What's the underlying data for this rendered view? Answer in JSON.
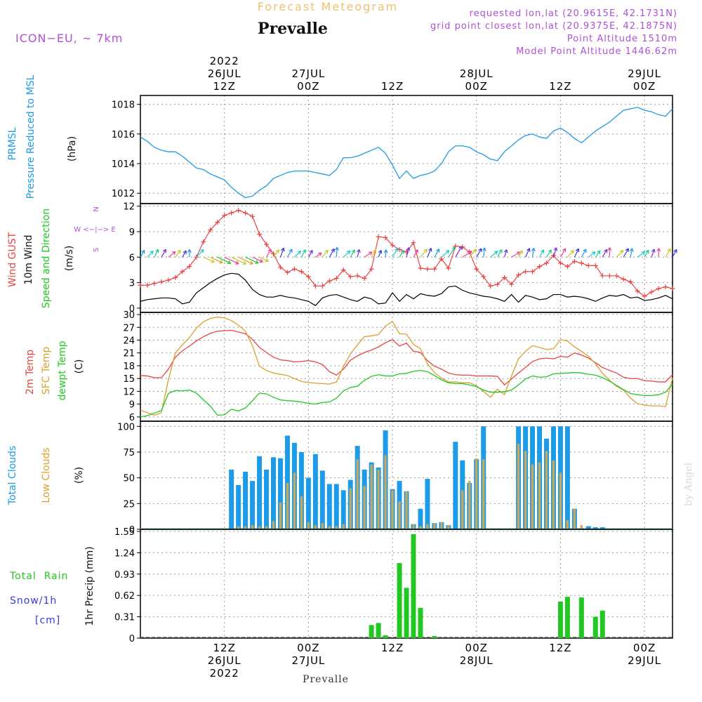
{
  "header": {
    "title": "Forecast Meteogram",
    "location": "Prevalle",
    "model": "ICON−EU,  ~ 7km",
    "info": [
      "requested lon,lat (20.9615E, 42.1731N)",
      "grid point closest lon,lat (20.9375E, 42.1875N)",
      "Point Altitude 1510m",
      "Model Point Altitude 1446.62m"
    ],
    "footer_location": "Prevalle",
    "credit": "by Angel"
  },
  "colors": {
    "pressure": "#1f9ae6",
    "gust": "#e84545",
    "wind": "#000000",
    "t2m": "#e84545",
    "sfc": "#d9a030",
    "dewpt": "#22c822",
    "total_clouds": "#1b9be8",
    "low_clouds": "#c8a85a",
    "rain": "#22c822",
    "snow": "#3a3ad8",
    "info": "#b050d8",
    "title": "#f0c070"
  },
  "time_axis": {
    "top_ticks": [
      {
        "h": 12,
        "lines": [
          "2022",
          "26JUL",
          "12Z"
        ]
      },
      {
        "h": 24,
        "lines": [
          "27JUL",
          "00Z"
        ]
      },
      {
        "h": 36,
        "lines": [
          "12Z"
        ]
      },
      {
        "h": 48,
        "lines": [
          "28JUL",
          "00Z"
        ]
      },
      {
        "h": 60,
        "lines": [
          "12Z"
        ]
      },
      {
        "h": 72,
        "lines": [
          "29JUL",
          "00Z"
        ]
      }
    ],
    "bottom_ticks": [
      {
        "h": 12,
        "lines": [
          "12Z",
          "26JUL",
          "2022"
        ]
      },
      {
        "h": 24,
        "lines": [
          "00Z",
          "27JUL"
        ]
      },
      {
        "h": 36,
        "lines": [
          "12Z"
        ]
      },
      {
        "h": 48,
        "lines": [
          "00Z",
          "28JUL"
        ]
      },
      {
        "h": 60,
        "lines": [
          "12Z"
        ]
      },
      {
        "h": 72,
        "lines": [
          "00Z",
          "29JUL"
        ]
      }
    ]
  },
  "panel_labels": {
    "pressure": {
      "lines": [
        "PRMSL",
        "Pressure Reduced to MSL"
      ],
      "unit": "(hPa)"
    },
    "wind": {
      "gust": "Wind GUST",
      "wind10": "10m Wind",
      "dir": "Speed and Direction",
      "unit": "(m/s)",
      "compass_n": "N",
      "compass_s": "S",
      "compass_we": "W  <−|−>  E"
    },
    "temp": {
      "t2m": "2m Temp",
      "sfc": "SFC Temp",
      "dew": "dewpt Temp",
      "unit": "(C)"
    },
    "clouds": {
      "total": "Total Clouds",
      "low": "Low Clouds",
      "unit": "(%)"
    },
    "precip": {
      "rain": "Total  Rain",
      "snow": "Snow/1h",
      "snow_unit": "[cm]",
      "axis": "1hr Precip (mm)"
    }
  },
  "chart_data": [
    {
      "type": "line",
      "name": "pressure",
      "x_unit": "hours since 26JUL 00Z",
      "x": [
        0,
        1,
        2,
        3,
        4,
        5,
        6,
        7,
        8,
        9,
        10,
        11,
        12,
        13,
        14,
        15,
        16,
        17,
        18,
        19,
        20,
        21,
        22,
        23,
        24,
        25,
        26,
        27,
        28,
        29,
        30,
        31,
        32,
        33,
        34,
        35,
        36,
        37,
        38,
        39,
        40,
        41,
        42,
        43,
        44,
        45,
        46,
        47,
        48,
        49,
        50,
        51,
        52,
        53,
        54,
        55,
        56,
        57,
        58,
        59,
        60,
        61,
        62,
        63,
        64,
        65,
        66,
        67,
        68,
        69,
        70,
        71,
        72,
        73,
        74,
        75,
        76
      ],
      "series": [
        {
          "name": "PRMSL",
          "values": [
            1015.8,
            1015.5,
            1015.1,
            1014.9,
            1014.8,
            1014.8,
            1014.5,
            1014.1,
            1013.7,
            1013.6,
            1013.3,
            1013.1,
            1012.9,
            1012.4,
            1012.0,
            1011.7,
            1011.8,
            1012.2,
            1012.5,
            1013.0,
            1013.2,
            1013.4,
            1013.5,
            1013.5,
            1013.5,
            1013.4,
            1013.3,
            1013.2,
            1013.6,
            1014.4,
            1014.4,
            1014.5,
            1014.7,
            1014.9,
            1015.1,
            1014.7,
            1013.9,
            1013.0,
            1013.5,
            1013.0,
            1013.2,
            1013.3,
            1013.5,
            1014.0,
            1014.8,
            1015.2,
            1015.2,
            1015.1,
            1014.8,
            1014.6,
            1014.3,
            1014.2,
            1014.8,
            1015.2,
            1015.6,
            1015.9,
            1016.0,
            1015.8,
            1015.7,
            1016.2,
            1016.4,
            1016.1,
            1015.7,
            1015.4,
            1015.8,
            1016.2,
            1016.5,
            1016.8,
            1017.2,
            1017.6,
            1017.7,
            1017.8,
            1017.6,
            1017.5,
            1017.3,
            1017.2,
            1017.7
          ]
        }
      ],
      "ylim": [
        1011.3,
        1018.6
      ],
      "yticks": [
        1012,
        1014,
        1016,
        1018
      ]
    },
    {
      "type": "line",
      "name": "wind",
      "x_unit": "hours since 26JUL 00Z",
      "x": [
        0,
        1,
        2,
        3,
        4,
        5,
        6,
        7,
        8,
        9,
        10,
        11,
        12,
        13,
        14,
        15,
        16,
        17,
        18,
        19,
        20,
        21,
        22,
        23,
        24,
        25,
        26,
        27,
        28,
        29,
        30,
        31,
        32,
        33,
        34,
        35,
        36,
        37,
        38,
        39,
        40,
        41,
        42,
        43,
        44,
        45,
        46,
        47,
        48,
        49,
        50,
        51,
        52,
        53,
        54,
        55,
        56,
        57,
        58,
        59,
        60,
        61,
        62,
        63,
        64,
        65,
        66,
        67,
        68,
        69,
        70,
        71,
        72,
        73,
        74,
        75,
        76
      ],
      "series": [
        {
          "name": "Wind GUST",
          "values": [
            2.7,
            2.7,
            2.9,
            3.1,
            3.3,
            3.6,
            4.3,
            4.9,
            6.0,
            7.8,
            9.2,
            10.1,
            10.9,
            11.2,
            11.5,
            11.2,
            10.8,
            8.7,
            7.5,
            6.4,
            4.8,
            4.2,
            4.6,
            4.3,
            3.7,
            2.6,
            2.6,
            3.2,
            3.5,
            4.5,
            3.7,
            3.8,
            3.5,
            4.6,
            8.4,
            8.3,
            7.4,
            6.9,
            6.6,
            7.7,
            4.7,
            4.6,
            4.6,
            5.8,
            4.7,
            7.3,
            7.2,
            6.6,
            4.6,
            3.7,
            2.6,
            2.8,
            3.6,
            2.8,
            3.9,
            4.3,
            4.3,
            4.9,
            5.3,
            6.2,
            5.3,
            4.9,
            5.5,
            5.3,
            5.0,
            5.0,
            3.8,
            3.8,
            3.8,
            3.4,
            3.1,
            2.0,
            1.4,
            1.9,
            2.3,
            2.5,
            2.3
          ]
        },
        {
          "name": "10m Wind",
          "values": [
            0.8,
            1.0,
            1.1,
            1.2,
            1.2,
            1.1,
            0.5,
            0.7,
            1.8,
            2.4,
            3.0,
            3.5,
            3.9,
            4.1,
            4.0,
            3.3,
            2.2,
            1.6,
            1.3,
            1.3,
            1.5,
            1.3,
            1.2,
            1.0,
            0.8,
            0.3,
            1.2,
            1.5,
            1.6,
            1.3,
            1.0,
            0.8,
            1.3,
            1.1,
            0.5,
            0.6,
            1.8,
            0.8,
            1.6,
            1.1,
            1.7,
            1.5,
            1.4,
            1.7,
            2.5,
            2.6,
            2.1,
            1.8,
            1.6,
            1.4,
            1.3,
            1.1,
            0.8,
            1.6,
            0.7,
            1.5,
            1.3,
            1.0,
            1.1,
            1.6,
            1.6,
            1.3,
            1.4,
            1.3,
            1.1,
            0.8,
            1.2,
            1.5,
            1.4,
            1.6,
            1.2,
            1.3,
            0.9,
            1.0,
            1.2,
            1.5,
            1.1
          ]
        }
      ],
      "ylim": [
        -0.5,
        12.3
      ],
      "yticks": [
        0,
        3,
        6,
        9,
        12
      ]
    },
    {
      "type": "line",
      "name": "temperature",
      "x_unit": "hours since 26JUL 00Z",
      "x": [
        0,
        1,
        2,
        3,
        4,
        5,
        6,
        7,
        8,
        9,
        10,
        11,
        12,
        13,
        14,
        15,
        16,
        17,
        18,
        19,
        20,
        21,
        22,
        23,
        24,
        25,
        26,
        27,
        28,
        29,
        30,
        31,
        32,
        33,
        34,
        35,
        36,
        37,
        38,
        39,
        40,
        41,
        42,
        43,
        44,
        45,
        46,
        47,
        48,
        49,
        50,
        51,
        52,
        53,
        54,
        55,
        56,
        57,
        58,
        59,
        60,
        61,
        62,
        63,
        64,
        65,
        66,
        67,
        68,
        69,
        70,
        71,
        72,
        73,
        74,
        75,
        76
      ],
      "series": [
        {
          "name": "2m Temp",
          "values": [
            15.7,
            15.6,
            15.2,
            15.2,
            17.2,
            20.0,
            21.5,
            22.6,
            23.8,
            24.8,
            25.6,
            26.1,
            26.2,
            26.3,
            25.9,
            25.5,
            24.2,
            22.3,
            21.1,
            20.0,
            19.4,
            19.2,
            18.9,
            19.0,
            19.2,
            18.9,
            18.3,
            16.6,
            15.8,
            17.2,
            19.3,
            20.3,
            21.1,
            21.7,
            22.4,
            23.4,
            24.1,
            22.6,
            23.3,
            21.4,
            21.1,
            19.2,
            17.9,
            17.2,
            16.3,
            15.9,
            15.8,
            15.8,
            15.6,
            15.6,
            15.6,
            15.5,
            13.5,
            14.9,
            16.3,
            17.6,
            19.0,
            19.6,
            19.8,
            19.6,
            20.2,
            20.0,
            21.0,
            20.5,
            19.8,
            18.7,
            17.6,
            16.9,
            16.3,
            15.3,
            15.0,
            15.0,
            14.5,
            14.4,
            14.2,
            14.2,
            15.9
          ]
        },
        {
          "name": "SFC Temp",
          "values": [
            7.6,
            7.0,
            6.4,
            7.0,
            14.7,
            21.0,
            22.9,
            24.6,
            26.8,
            28.3,
            29.1,
            29.4,
            29.2,
            28.6,
            27.5,
            26.1,
            22.7,
            17.9,
            16.9,
            16.3,
            16.0,
            15.7,
            15.0,
            14.3,
            14.1,
            13.9,
            13.8,
            13.7,
            14.2,
            17.8,
            20.8,
            22.9,
            24.8,
            25.0,
            25.3,
            27.3,
            28.4,
            25.5,
            25.4,
            23.0,
            22.0,
            18.4,
            16.4,
            15.1,
            14.2,
            14.2,
            14.0,
            14.0,
            13.3,
            12.0,
            10.6,
            12.5,
            11.2,
            15.6,
            19.6,
            21.4,
            22.7,
            22.3,
            21.8,
            22.0,
            24.1,
            23.8,
            22.4,
            21.4,
            20.2,
            18.5,
            16.2,
            14.6,
            13.2,
            12.3,
            10.4,
            9.1,
            8.8,
            8.6,
            8.6,
            8.4,
            15.1
          ]
        },
        {
          "name": "dewpt Temp",
          "values": [
            6.0,
            6.3,
            6.9,
            7.5,
            11.5,
            12.2,
            12.1,
            12.3,
            11.6,
            10.0,
            8.5,
            6.4,
            6.5,
            7.8,
            7.4,
            8.1,
            9.8,
            11.6,
            11.4,
            10.6,
            10.0,
            9.8,
            9.7,
            9.5,
            9.2,
            9.0,
            9.4,
            9.5,
            10.4,
            12.1,
            12.9,
            13.2,
            14.6,
            15.5,
            15.9,
            15.6,
            15.6,
            16.1,
            16.2,
            16.7,
            16.9,
            16.6,
            15.7,
            14.7,
            14.0,
            13.8,
            13.8,
            13.5,
            13.1,
            12.3,
            11.8,
            11.8,
            11.9,
            12.3,
            13.5,
            14.9,
            15.6,
            15.3,
            15.4,
            16.1,
            16.2,
            16.3,
            16.4,
            16.3,
            16.0,
            15.8,
            15.2,
            14.4,
            13.4,
            12.4,
            11.5,
            11.2,
            11.0,
            11.0,
            11.2,
            11.8,
            13.7
          ]
        }
      ],
      "ylim": [
        5,
        30.5
      ],
      "yticks": [
        6,
        9,
        12,
        15,
        18,
        21,
        24,
        27,
        30
      ]
    },
    {
      "type": "bar",
      "name": "clouds",
      "x_unit": "hours since 26JUL 00Z",
      "x": [
        13,
        14,
        15,
        16,
        17,
        18,
        19,
        20,
        21,
        22,
        23,
        24,
        25,
        26,
        27,
        28,
        29,
        30,
        31,
        32,
        33,
        34,
        35,
        36,
        37,
        38,
        39,
        40,
        41,
        42,
        43,
        44,
        45,
        46,
        47,
        48,
        49,
        54,
        55,
        56,
        57,
        58,
        59,
        60,
        61,
        62,
        63,
        64,
        65,
        66
      ],
      "series": [
        {
          "name": "Total Clouds",
          "values": [
            58,
            43,
            56,
            47,
            71,
            58,
            70,
            69,
            91,
            84,
            75,
            50,
            73,
            57,
            44,
            44,
            38,
            48,
            81,
            58,
            65,
            60,
            96,
            39,
            47,
            37,
            5,
            20,
            49,
            6,
            7,
            4,
            85,
            67,
            45,
            68,
            100,
            100,
            100,
            100,
            100,
            88,
            100,
            100,
            100,
            20,
            1,
            3,
            2,
            2
          ]
        },
        {
          "name": "Low Clouds",
          "values": [
            0,
            3,
            3,
            4,
            3,
            3,
            8,
            26,
            45,
            55,
            32,
            7,
            4,
            6,
            3,
            3,
            5,
            40,
            68,
            42,
            63,
            58,
            72,
            38,
            27,
            37,
            5,
            3,
            5,
            6,
            7,
            4,
            0,
            38,
            47,
            69,
            68,
            83,
            76,
            63,
            65,
            76,
            67,
            55,
            9,
            20,
            4,
            0,
            0,
            0
          ]
        }
      ],
      "ylim": [
        0,
        105
      ],
      "yticks": [
        0,
        25,
        50,
        75,
        100
      ]
    },
    {
      "type": "bar",
      "name": "precipitation",
      "x_unit": "hours since 26JUL 00Z",
      "x": [
        33,
        34,
        35,
        36,
        37,
        38,
        39,
        40,
        41,
        42,
        60,
        61,
        62,
        63,
        64,
        65,
        66
      ],
      "series": [
        {
          "name": "Total Rain",
          "values": [
            0.19,
            0.22,
            0.04,
            0.0,
            1.09,
            0.73,
            1.51,
            0.44,
            0.0,
            0.03,
            0.53,
            0.6,
            0.0,
            0.59,
            0.0,
            0.31,
            0.4
          ]
        }
      ],
      "ylim": [
        0,
        1.58
      ],
      "yticks": [
        "0",
        "0.31",
        "0.62",
        "0.93",
        "1.24",
        "1.55"
      ]
    }
  ]
}
